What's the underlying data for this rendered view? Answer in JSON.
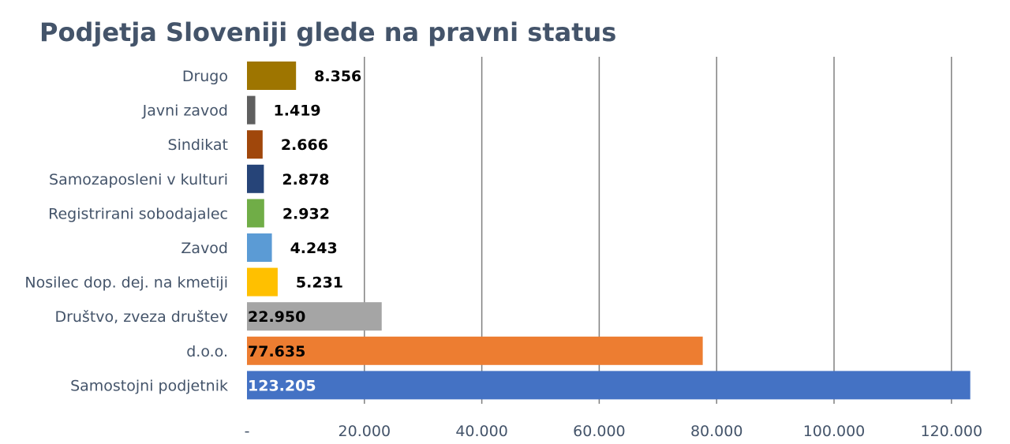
{
  "chart_data": {
    "type": "bar",
    "orientation": "horizontal",
    "title": "Podjetja Sloveniji glede na pravni status",
    "xlabel": "",
    "ylabel": "",
    "xlim": [
      0,
      125000
    ],
    "grid": "vertical",
    "legend": "none",
    "tick_values": [
      0,
      20000,
      40000,
      60000,
      80000,
      100000,
      120000
    ],
    "tick_labels": [
      "-",
      "20.000",
      "40.000",
      "60.000",
      "80.000",
      "100.000",
      "120.000"
    ],
    "categories": [
      "Drugo",
      "Javni zavod",
      "Sindikat",
      "Samozaposleni v kulturi",
      "Registrirani sobodajalec",
      "Zavod",
      "Nosilec dop. dej. na kmetiji",
      "Društvo, zveza društev",
      "d.o.o.",
      "Samostojni podjetnik"
    ],
    "values": [
      8356,
      1419,
      2666,
      2878,
      2932,
      4243,
      5231,
      22950,
      77635,
      123205
    ],
    "data_labels": [
      "8.356",
      "1.419",
      "2.666",
      "2.878",
      "2.932",
      "4.243",
      "5.231",
      "22.950",
      "77.635",
      "123.205"
    ],
    "colors": [
      "#9e7500",
      "#5f5f5f",
      "#a0470b",
      "#264478",
      "#70ad47",
      "#5b9bd5",
      "#ffc000",
      "#a5a5a5",
      "#ed7d31",
      "#4472c4"
    ],
    "data_label_inside": [
      false,
      false,
      false,
      false,
      false,
      false,
      false,
      true,
      true,
      true
    ],
    "data_label_colors": [
      "#000000",
      "#000000",
      "#000000",
      "#000000",
      "#000000",
      "#000000",
      "#000000",
      "#000000",
      "#000000",
      "#ffffff"
    ],
    "grid_color": "#808080",
    "text_color": "#44546a"
  }
}
